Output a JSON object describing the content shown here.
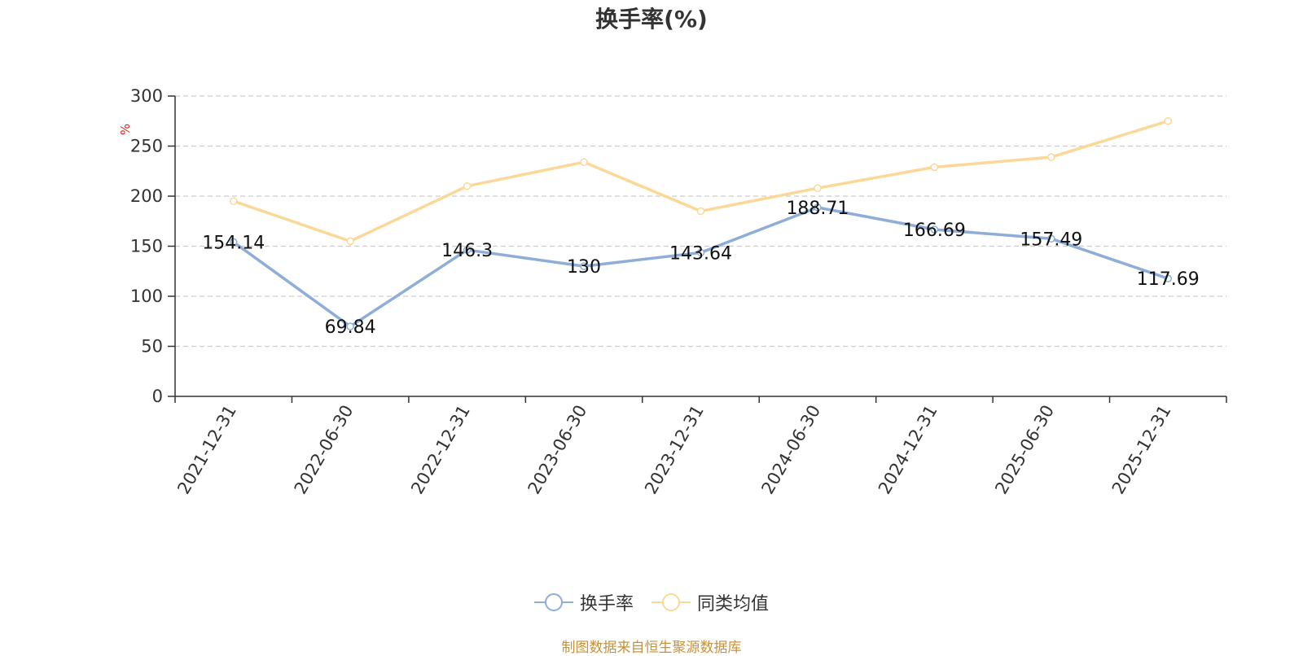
{
  "chart_data": {
    "type": "line",
    "title": "换手率(%)",
    "ylabel": "%",
    "ylim": [
      0,
      300
    ],
    "yticks": [
      0,
      50,
      100,
      150,
      200,
      250,
      300
    ],
    "grid": true,
    "legend_position": "bottom",
    "categories": [
      "2021-12-31",
      "2022-06-30",
      "2022-12-31",
      "2023-06-30",
      "2023-12-31",
      "2024-06-30",
      "2024-12-31",
      "2025-06-30",
      "2025-12-31"
    ],
    "series": [
      {
        "name": "换手率",
        "color": "#8eadd8",
        "values": [
          154.14,
          69.84,
          146.3,
          130,
          143.64,
          188.71,
          166.69,
          157.49,
          117.69
        ],
        "labels": [
          "154.14",
          "69.84",
          "146.3",
          "130",
          "143.64",
          "188.71",
          "166.69",
          "157.49",
          "117.69"
        ],
        "show_labels": true
      },
      {
        "name": "同类均值",
        "color": "#fbd898",
        "values": [
          195,
          155,
          210,
          234,
          185,
          208,
          229,
          239,
          275
        ],
        "show_labels": false
      }
    ]
  },
  "source": "制图数据来自恒生聚源数据库"
}
